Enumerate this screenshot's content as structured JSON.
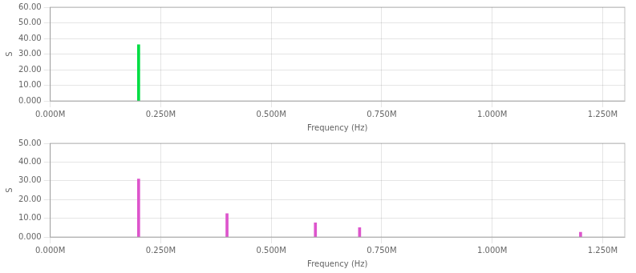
{
  "chart_data": [
    {
      "type": "bar",
      "x": [
        200000
      ],
      "values": [
        36.0
      ],
      "color": "#00dd44",
      "xlabel": "Frequency (Hz)",
      "ylabel": "S",
      "xlim": [
        0,
        1300000
      ],
      "xticks": [
        {
          "value": 0,
          "label": "0.000M"
        },
        {
          "value": 250000,
          "label": "0.250M"
        },
        {
          "value": 500000,
          "label": "0.500M"
        },
        {
          "value": 750000,
          "label": "0.750M"
        },
        {
          "value": 1000000,
          "label": "1.000M"
        },
        {
          "value": 1250000,
          "label": "1.250M"
        }
      ],
      "ylim": [
        0,
        60
      ],
      "yticks": [
        {
          "value": 0,
          "label": "0.000"
        },
        {
          "value": 10,
          "label": "10.00"
        },
        {
          "value": 20,
          "label": "20.00"
        },
        {
          "value": 30,
          "label": "30.00"
        },
        {
          "value": 40,
          "label": "40.00"
        },
        {
          "value": 50,
          "label": "50.00"
        },
        {
          "value": 60,
          "label": "60.00"
        }
      ],
      "grid": true
    },
    {
      "type": "bar",
      "x": [
        200000,
        400000,
        600000,
        700000,
        1200000
      ],
      "values": [
        31.0,
        12.5,
        7.5,
        5.0,
        2.5
      ],
      "color": "#dd55cc",
      "xlabel": "Frequency (Hz)",
      "ylabel": "S",
      "xlim": [
        0,
        1300000
      ],
      "xticks": [
        {
          "value": 0,
          "label": "0.000M"
        },
        {
          "value": 250000,
          "label": "0.250M"
        },
        {
          "value": 500000,
          "label": "0.500M"
        },
        {
          "value": 750000,
          "label": "0.750M"
        },
        {
          "value": 1000000,
          "label": "1.000M"
        },
        {
          "value": 1250000,
          "label": "1.250M"
        }
      ],
      "ylim": [
        0,
        50
      ],
      "yticks": [
        {
          "value": 0,
          "label": "0.000"
        },
        {
          "value": 10,
          "label": "10.00"
        },
        {
          "value": 20,
          "label": "20.00"
        },
        {
          "value": 30,
          "label": "30.00"
        },
        {
          "value": 40,
          "label": "40.00"
        },
        {
          "value": 50,
          "label": "50.00"
        }
      ],
      "grid": true
    }
  ]
}
